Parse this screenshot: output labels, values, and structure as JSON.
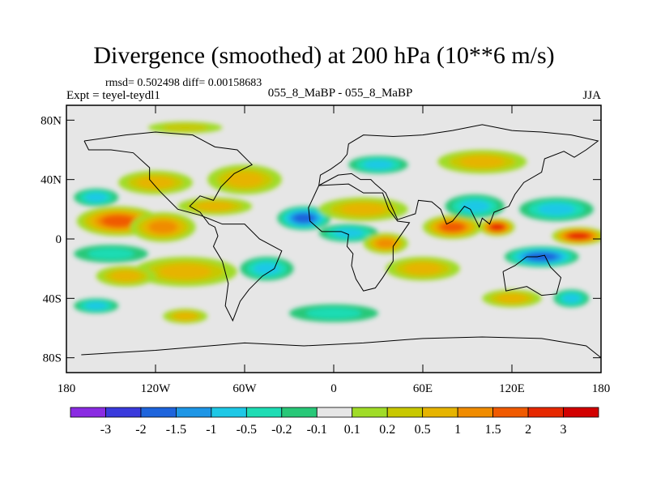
{
  "chart_data": {
    "type": "heatmap",
    "title": "Divergence (smoothed) at 200 hPa (10**6 m/s)",
    "stats_text": "rmsd= 0.502498 diff= 0.00158683",
    "left_label": "Expt = teyel-teydl1",
    "center_label": "055_8_MaBP - 055_8_MaBP",
    "right_label": "JJA",
    "xlim": [
      -180,
      180
    ],
    "ylim": [
      -90,
      90
    ],
    "x_ticks": [
      {
        "value": -180,
        "label": "180"
      },
      {
        "value": -120,
        "label": "120W"
      },
      {
        "value": -60,
        "label": "60W"
      },
      {
        "value": 0,
        "label": "0"
      },
      {
        "value": 60,
        "label": "60E"
      },
      {
        "value": 120,
        "label": "120E"
      },
      {
        "value": 180,
        "label": "180"
      }
    ],
    "y_ticks": [
      {
        "value": 80,
        "label": "80N"
      },
      {
        "value": 40,
        "label": "40N"
      },
      {
        "value": 0,
        "label": "0"
      },
      {
        "value": -40,
        "label": "40S"
      },
      {
        "value": -80,
        "label": "80S"
      }
    ],
    "colorbar": {
      "labels": [
        "-3",
        "-2",
        "-1.5",
        "-1",
        "-0.5",
        "-0.2",
        "-0.1",
        "0.1",
        "0.2",
        "0.5",
        "1",
        "1.5",
        "2",
        "3"
      ],
      "colors": [
        "#8a2be2",
        "#3a3adc",
        "#1e64dc",
        "#1e96e6",
        "#1ec8e6",
        "#1edcb4",
        "#28c878",
        "#e6e6e6",
        "#a0dc28",
        "#c8c800",
        "#e6b400",
        "#f08c00",
        "#f05a00",
        "#e62800",
        "#d20000"
      ]
    },
    "blobs": [
      {
        "lon": -145,
        "lat": 12,
        "rlon": 28,
        "rlat": 10,
        "value": 1.6
      },
      {
        "lon": -115,
        "lat": 8,
        "rlon": 22,
        "rlat": 10,
        "value": 1.0
      },
      {
        "lon": -160,
        "lat": 28,
        "rlon": 15,
        "rlat": 6,
        "value": -0.6
      },
      {
        "lon": -150,
        "lat": -10,
        "rlon": 25,
        "rlat": 6,
        "value": -0.4
      },
      {
        "lon": -100,
        "lat": -22,
        "rlon": 35,
        "rlat": 10,
        "value": 0.9
      },
      {
        "lon": -140,
        "lat": -25,
        "rlon": 20,
        "rlat": 7,
        "value": 0.6
      },
      {
        "lon": -120,
        "lat": 38,
        "rlon": 25,
        "rlat": 8,
        "value": 0.6
      },
      {
        "lon": -60,
        "lat": 40,
        "rlon": 25,
        "rlat": 10,
        "value": 0.7
      },
      {
        "lon": -80,
        "lat": 22,
        "rlon": 25,
        "rlat": 6,
        "value": 0.5
      },
      {
        "lon": -20,
        "lat": 14,
        "rlon": 18,
        "rlat": 8,
        "value": -1.5
      },
      {
        "lon": -45,
        "lat": -20,
        "rlon": 18,
        "rlat": 8,
        "value": -0.6
      },
      {
        "lon": 20,
        "lat": 20,
        "rlon": 30,
        "rlat": 8,
        "value": 0.5
      },
      {
        "lon": 10,
        "lat": 4,
        "rlon": 20,
        "rlat": 6,
        "value": -0.7
      },
      {
        "lon": 35,
        "lat": -3,
        "rlon": 15,
        "rlat": 7,
        "value": 1.3
      },
      {
        "lon": 80,
        "lat": 8,
        "rlon": 20,
        "rlat": 8,
        "value": 1.6
      },
      {
        "lon": 95,
        "lat": 22,
        "rlon": 20,
        "rlat": 8,
        "value": -0.7
      },
      {
        "lon": 110,
        "lat": 8,
        "rlon": 12,
        "rlat": 6,
        "value": 2.2
      },
      {
        "lon": 150,
        "lat": 20,
        "rlon": 25,
        "rlat": 8,
        "value": -0.9
      },
      {
        "lon": 165,
        "lat": 2,
        "rlon": 18,
        "rlat": 6,
        "value": 2.2
      },
      {
        "lon": 140,
        "lat": -12,
        "rlon": 25,
        "rlat": 7,
        "value": -1.6
      },
      {
        "lon": 60,
        "lat": -20,
        "rlon": 25,
        "rlat": 8,
        "value": 0.6
      },
      {
        "lon": 120,
        "lat": -40,
        "rlon": 20,
        "rlat": 6,
        "value": 0.6
      },
      {
        "lon": 160,
        "lat": -40,
        "rlon": 12,
        "rlat": 6,
        "value": -0.8
      },
      {
        "lon": -160,
        "lat": -45,
        "rlon": 15,
        "rlat": 5,
        "value": -0.6
      },
      {
        "lon": -100,
        "lat": -52,
        "rlon": 15,
        "rlat": 5,
        "value": 0.5
      },
      {
        "lon": 0,
        "lat": -50,
        "rlon": 30,
        "rlat": 6,
        "value": -0.3
      },
      {
        "lon": 100,
        "lat": 52,
        "rlon": 30,
        "rlat": 8,
        "value": 0.6
      },
      {
        "lon": 30,
        "lat": 50,
        "rlon": 20,
        "rlat": 6,
        "value": -0.5
      },
      {
        "lon": -100,
        "lat": 75,
        "rlon": 25,
        "rlat": 4,
        "value": 0.4
      }
    ],
    "coastlines": [
      [
        [
          -168,
          66
        ],
        [
          -140,
          70
        ],
        [
          -120,
          72
        ],
        [
          -95,
          70
        ],
        [
          -80,
          62
        ],
        [
          -65,
          60
        ],
        [
          -55,
          50
        ],
        [
          -67,
          44
        ],
        [
          -76,
          35
        ],
        [
          -81,
          26
        ],
        [
          -90,
          29
        ],
        [
          -97,
          22
        ],
        [
          -90,
          18
        ],
        [
          -84,
          10
        ],
        [
          -80,
          8
        ],
        [
          -78,
          2
        ],
        [
          -81,
          -5
        ],
        [
          -75,
          -15
        ],
        [
          -71,
          -30
        ],
        [
          -73,
          -45
        ],
        [
          -68,
          -55
        ],
        [
          -63,
          -42
        ],
        [
          -57,
          -34
        ],
        [
          -48,
          -25
        ],
        [
          -40,
          -20
        ],
        [
          -35,
          -8
        ],
        [
          -50,
          0
        ],
        [
          -60,
          10
        ],
        [
          -75,
          10
        ],
        [
          -90,
          16
        ],
        [
          -105,
          20
        ],
        [
          -117,
          32
        ],
        [
          -124,
          40
        ],
        [
          -124,
          48
        ],
        [
          -135,
          58
        ],
        [
          -150,
          60
        ],
        [
          -165,
          60
        ],
        [
          -168,
          66
        ]
      ],
      [
        [
          -10,
          36
        ],
        [
          -17,
          21
        ],
        [
          -16,
          12
        ],
        [
          -8,
          5
        ],
        [
          5,
          5
        ],
        [
          10,
          3
        ],
        [
          9,
          -5
        ],
        [
          13,
          -10
        ],
        [
          12,
          -18
        ],
        [
          15,
          -27
        ],
        [
          20,
          -35
        ],
        [
          28,
          -33
        ],
        [
          33,
          -26
        ],
        [
          40,
          -15
        ],
        [
          40,
          -5
        ],
        [
          51,
          11
        ],
        [
          43,
          12
        ],
        [
          37,
          20
        ],
        [
          33,
          31
        ],
        [
          20,
          31
        ],
        [
          10,
          37
        ],
        [
          -10,
          36
        ]
      ],
      [
        [
          -10,
          36
        ],
        [
          -9,
          43
        ],
        [
          -2,
          47
        ],
        [
          5,
          52
        ],
        [
          9,
          57
        ],
        [
          10,
          64
        ],
        [
          20,
          70
        ],
        [
          40,
          69
        ],
        [
          60,
          70
        ],
        [
          80,
          73
        ],
        [
          100,
          77
        ],
        [
          120,
          73
        ],
        [
          140,
          72
        ],
        [
          160,
          70
        ],
        [
          178,
          66
        ],
        [
          170,
          60
        ],
        [
          162,
          55
        ],
        [
          155,
          59
        ],
        [
          142,
          54
        ],
        [
          140,
          45
        ],
        [
          128,
          38
        ],
        [
          122,
          30
        ],
        [
          118,
          22
        ],
        [
          108,
          18
        ],
        [
          105,
          10
        ],
        [
          100,
          14
        ],
        [
          98,
          8
        ],
        [
          92,
          20
        ],
        [
          88,
          22
        ],
        [
          80,
          12
        ],
        [
          76,
          10
        ],
        [
          72,
          20
        ],
        [
          66,
          25
        ],
        [
          57,
          26
        ],
        [
          55,
          17
        ],
        [
          43,
          13
        ],
        [
          35,
          31
        ],
        [
          28,
          37
        ],
        [
          25,
          40
        ],
        [
          18,
          40
        ],
        [
          12,
          44
        ],
        [
          3,
          43
        ],
        [
          -10,
          36
        ]
      ],
      [
        [
          114,
          -22
        ],
        [
          122,
          -18
        ],
        [
          130,
          -12
        ],
        [
          137,
          -12
        ],
        [
          142,
          -11
        ],
        [
          146,
          -19
        ],
        [
          153,
          -26
        ],
        [
          150,
          -37
        ],
        [
          140,
          -38
        ],
        [
          130,
          -32
        ],
        [
          116,
          -35
        ],
        [
          114,
          -22
        ]
      ],
      [
        [
          -170,
          -78
        ],
        [
          -120,
          -75
        ],
        [
          -60,
          -70
        ],
        [
          -20,
          -72
        ],
        [
          20,
          -70
        ],
        [
          60,
          -67
        ],
        [
          100,
          -66
        ],
        [
          140,
          -67
        ],
        [
          170,
          -72
        ],
        [
          180,
          -80
        ]
      ]
    ]
  }
}
